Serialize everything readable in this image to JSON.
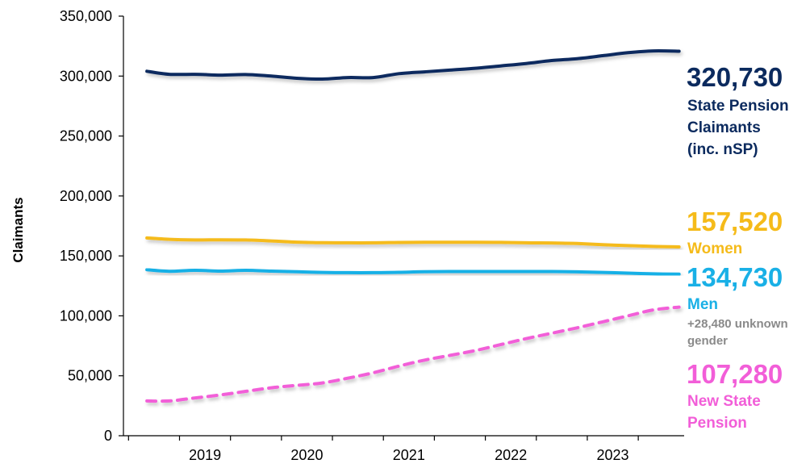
{
  "chart_data": {
    "type": "line",
    "title": "",
    "xlabel": "",
    "ylabel": "Claimants",
    "ylim": [
      0,
      350000
    ],
    "yticks": [
      0,
      50000,
      100000,
      150000,
      200000,
      250000,
      300000,
      350000
    ],
    "ytick_labels": [
      "0",
      "50,000",
      "100,000",
      "150,000",
      "200,000",
      "250,000",
      "300,000",
      "350,000"
    ],
    "xlim": [
      2018.45,
      2023.95
    ],
    "xtick_labels": [
      "2019",
      "2020",
      "2021",
      "2022",
      "2023"
    ],
    "grid": false,
    "legend": "end-labels-right",
    "series": [
      {
        "id": "state_pension",
        "color": "#0b2a5e",
        "dashed": false,
        "x": [
          2018.68,
          2018.9,
          2019.15,
          2019.4,
          2019.65,
          2019.9,
          2020.15,
          2020.4,
          2020.65,
          2020.9,
          2021.15,
          2021.4,
          2021.65,
          2021.9,
          2022.15,
          2022.4,
          2022.65,
          2022.9,
          2023.15,
          2023.4,
          2023.65,
          2023.9
        ],
        "values": [
          304000,
          301500,
          301500,
          300800,
          301300,
          300000,
          298200,
          297500,
          298800,
          298800,
          302000,
          303500,
          305000,
          306500,
          308500,
          310500,
          313000,
          314500,
          317000,
          319500,
          321000,
          320730
        ],
        "end_value": "320,730",
        "end_label": [
          "State Pension",
          "Claimants",
          "(inc. nSP)"
        ]
      },
      {
        "id": "women",
        "color": "#f5bb1a",
        "dashed": false,
        "x": [
          2018.68,
          2018.9,
          2019.15,
          2019.4,
          2019.65,
          2019.9,
          2020.15,
          2020.4,
          2020.65,
          2020.9,
          2021.15,
          2021.4,
          2021.65,
          2021.9,
          2022.15,
          2022.4,
          2022.65,
          2022.9,
          2023.15,
          2023.4,
          2023.65,
          2023.9
        ],
        "values": [
          165000,
          163800,
          163300,
          163400,
          163300,
          162500,
          161500,
          161000,
          160900,
          160900,
          161200,
          161400,
          161400,
          161400,
          161300,
          160900,
          160800,
          160300,
          159300,
          158600,
          157900,
          157520
        ],
        "end_value": "157,520",
        "end_label": [
          "Women"
        ]
      },
      {
        "id": "men",
        "color": "#19b0e6",
        "dashed": false,
        "x": [
          2018.68,
          2018.9,
          2019.15,
          2019.4,
          2019.65,
          2019.9,
          2020.15,
          2020.4,
          2020.65,
          2020.9,
          2021.15,
          2021.4,
          2021.65,
          2021.9,
          2022.15,
          2022.4,
          2022.65,
          2022.9,
          2023.15,
          2023.4,
          2023.65,
          2023.9
        ],
        "values": [
          138500,
          137200,
          138000,
          137300,
          138000,
          137300,
          136800,
          136200,
          136000,
          136000,
          136300,
          136800,
          137000,
          137000,
          137000,
          137000,
          137000,
          136700,
          136200,
          135600,
          135000,
          134730
        ],
        "end_value": "134,730",
        "end_label": [
          "Men"
        ],
        "note": [
          "+28,480 unknown",
          "gender"
        ]
      },
      {
        "id": "new_state_pension",
        "color": "#f25ed8",
        "dashed": true,
        "x": [
          2018.68,
          2018.9,
          2019.15,
          2019.4,
          2019.65,
          2019.9,
          2020.15,
          2020.4,
          2020.65,
          2020.9,
          2021.15,
          2021.4,
          2021.65,
          2021.9,
          2022.15,
          2022.4,
          2022.65,
          2022.9,
          2023.15,
          2023.4,
          2023.65,
          2023.9
        ],
        "values": [
          29000,
          29000,
          31500,
          34000,
          37000,
          40000,
          42000,
          44000,
          48000,
          52500,
          58000,
          63000,
          67000,
          71000,
          76000,
          81000,
          85500,
          90000,
          95000,
          100000,
          105000,
          107280
        ],
        "end_value": "107,280",
        "end_label": [
          "New State",
          "Pension"
        ]
      }
    ]
  }
}
